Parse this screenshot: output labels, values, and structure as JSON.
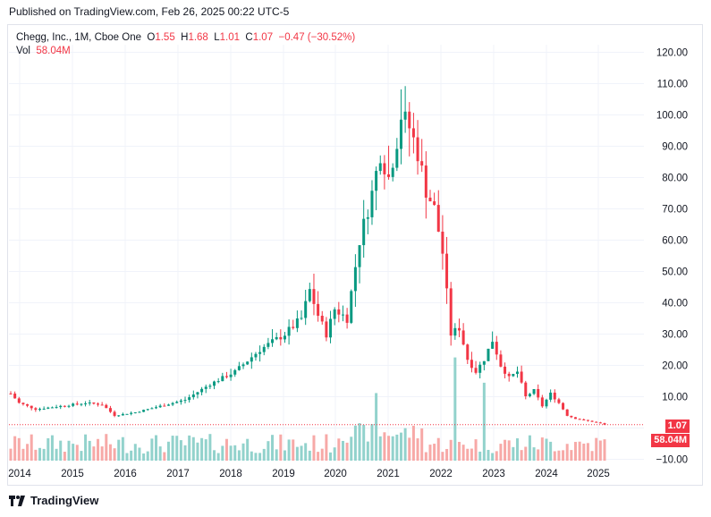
{
  "header": {
    "published": "Published on TradingView.com, Feb 26, 2025 00:22 UTC-5"
  },
  "legend": {
    "symbol": "Chegg, Inc., 1M, Cboe One",
    "o_label": "O",
    "o_value": "1.55",
    "h_label": "H",
    "h_value": "1.68",
    "l_label": "L",
    "l_value": "1.01",
    "c_label": "C",
    "c_value": "1.07",
    "change": "−0.47 (−30.52%)",
    "vol_label": "Vol",
    "vol_value": "58.04M"
  },
  "badges": {
    "price": "1.07",
    "volume": "58.04M"
  },
  "footer": {
    "brand": "TradingView"
  },
  "colors": {
    "up": "#089981",
    "down": "#f23645",
    "up_vol": "#92d2cc",
    "down_vol": "#f7a9a7",
    "grid": "#f0f3fa",
    "last_price_line": "#f23645"
  },
  "chart_data": {
    "type": "candlestick",
    "interval": "1M",
    "y_axis_ticks": [
      "120.00",
      "110.00",
      "100.00",
      "90.00",
      "80.00",
      "70.00",
      "60.00",
      "50.00",
      "40.00",
      "30.00",
      "20.00",
      "10.00",
      "0.00",
      "−10.00"
    ],
    "ylim": [
      -10,
      120
    ],
    "x_axis_ticks": [
      "2014",
      "2015",
      "2016",
      "2017",
      "2018",
      "2019",
      "2020",
      "2021",
      "2022",
      "2023",
      "2024",
      "2025"
    ],
    "grid": true,
    "last_close": 1.07
  }
}
